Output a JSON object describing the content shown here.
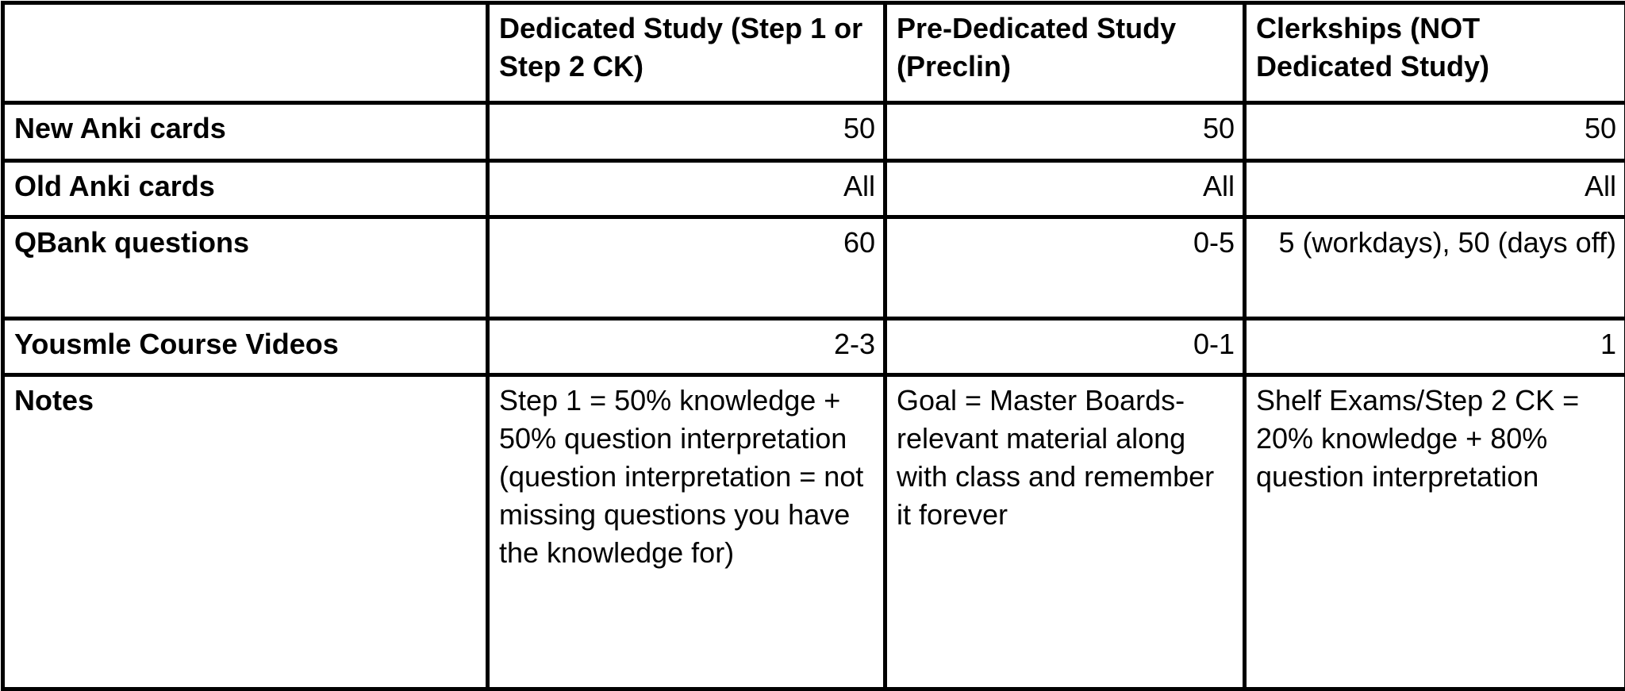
{
  "headers": [
    "",
    "Dedicated Study (Step 1 or Step 2 CK)",
    "Pre-Dedicated Study (Preclin)",
    "Clerkships (NOT Dedicated Study)"
  ],
  "rows": [
    {
      "label": "New Anki cards",
      "cells": [
        "50",
        "50",
        "50"
      ]
    },
    {
      "label": "Old Anki cards",
      "cells": [
        "All",
        "All",
        "All"
      ]
    },
    {
      "label": "QBank questions",
      "cells": [
        "60",
        "0-5",
        "5 (workdays), 50 (days off)"
      ]
    },
    {
      "label": "Yousmle Course Videos",
      "cells": [
        "2-3",
        "0-1",
        "1"
      ]
    },
    {
      "label": "Notes",
      "cells": [
        "Step 1 = 50% knowledge + 50% question interpretation (question interpretation = not missing questions you have the knowledge for)",
        "Goal = Master Boards-relevant material along with class and remember it forever",
        "Shelf Exams/Step 2 CK = 20% knowledge + 80% question interpretation"
      ]
    }
  ]
}
